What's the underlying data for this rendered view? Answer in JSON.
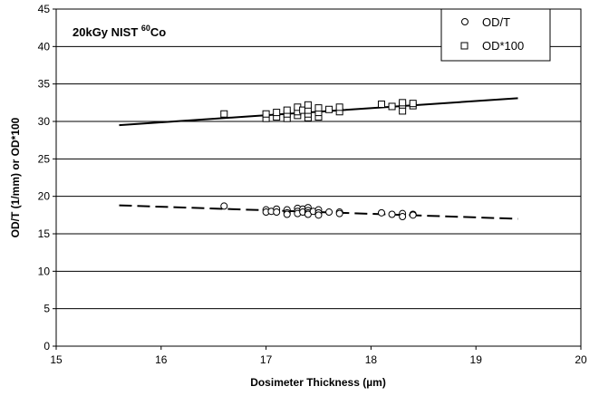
{
  "chart_data": {
    "type": "scatter",
    "title": "",
    "xlabel": "Dosimeter Thickness (µm)",
    "ylabel": "OD/T (1/mm) or OD*100",
    "xlim": [
      15,
      20
    ],
    "ylim": [
      0,
      45
    ],
    "xticks": [
      15,
      16,
      17,
      18,
      19,
      20
    ],
    "yticks": [
      0,
      5,
      10,
      15,
      20,
      25,
      30,
      35,
      40,
      45
    ],
    "grid": "horizontal",
    "legend_position": "top-right",
    "annotation": {
      "main": "20kGy NIST ",
      "superscript": "60",
      "suffix": "Co"
    },
    "series": [
      {
        "name": "OD/T",
        "marker": "circle",
        "trendline": "dashed",
        "trend": [
          [
            15.6,
            18.8
          ],
          [
            19.4,
            17.0
          ]
        ],
        "points": [
          [
            16.6,
            18.7
          ],
          [
            17.0,
            18.2
          ],
          [
            17.0,
            17.9
          ],
          [
            17.05,
            18.0
          ],
          [
            17.1,
            18.3
          ],
          [
            17.1,
            17.9
          ],
          [
            17.2,
            18.2
          ],
          [
            17.2,
            17.8
          ],
          [
            17.2,
            17.6
          ],
          [
            17.3,
            18.4
          ],
          [
            17.3,
            18.0
          ],
          [
            17.3,
            17.7
          ],
          [
            17.35,
            18.3
          ],
          [
            17.35,
            17.9
          ],
          [
            17.4,
            18.5
          ],
          [
            17.4,
            18.1
          ],
          [
            17.4,
            17.8
          ],
          [
            17.4,
            17.6
          ],
          [
            17.45,
            18.0
          ],
          [
            17.5,
            18.2
          ],
          [
            17.5,
            17.8
          ],
          [
            17.5,
            17.5
          ],
          [
            17.6,
            17.9
          ],
          [
            17.7,
            17.9
          ],
          [
            17.7,
            17.7
          ],
          [
            18.1,
            17.8
          ],
          [
            18.2,
            17.6
          ],
          [
            18.3,
            17.7
          ],
          [
            18.3,
            17.3
          ],
          [
            18.4,
            17.6
          ],
          [
            18.4,
            17.5
          ]
        ]
      },
      {
        "name": "OD*100",
        "marker": "square",
        "trendline": "solid",
        "trend": [
          [
            15.6,
            29.5
          ],
          [
            19.4,
            33.1
          ]
        ],
        "points": [
          [
            16.6,
            31.0
          ],
          [
            17.0,
            30.4
          ],
          [
            17.0,
            31.0
          ],
          [
            17.1,
            30.6
          ],
          [
            17.1,
            31.2
          ],
          [
            17.2,
            30.4
          ],
          [
            17.2,
            31.0
          ],
          [
            17.2,
            31.5
          ],
          [
            17.3,
            30.8
          ],
          [
            17.3,
            31.3
          ],
          [
            17.3,
            31.9
          ],
          [
            17.35,
            31.5
          ],
          [
            17.4,
            30.5
          ],
          [
            17.4,
            31.0
          ],
          [
            17.4,
            31.5
          ],
          [
            17.4,
            32.2
          ],
          [
            17.5,
            30.6
          ],
          [
            17.5,
            31.2
          ],
          [
            17.5,
            31.8
          ],
          [
            17.6,
            31.6
          ],
          [
            17.7,
            31.3
          ],
          [
            17.7,
            31.9
          ],
          [
            18.1,
            32.3
          ],
          [
            18.2,
            32.0
          ],
          [
            18.3,
            31.4
          ],
          [
            18.3,
            32.2
          ],
          [
            18.3,
            32.5
          ],
          [
            18.4,
            32.1
          ],
          [
            18.4,
            32.4
          ]
        ]
      }
    ]
  }
}
